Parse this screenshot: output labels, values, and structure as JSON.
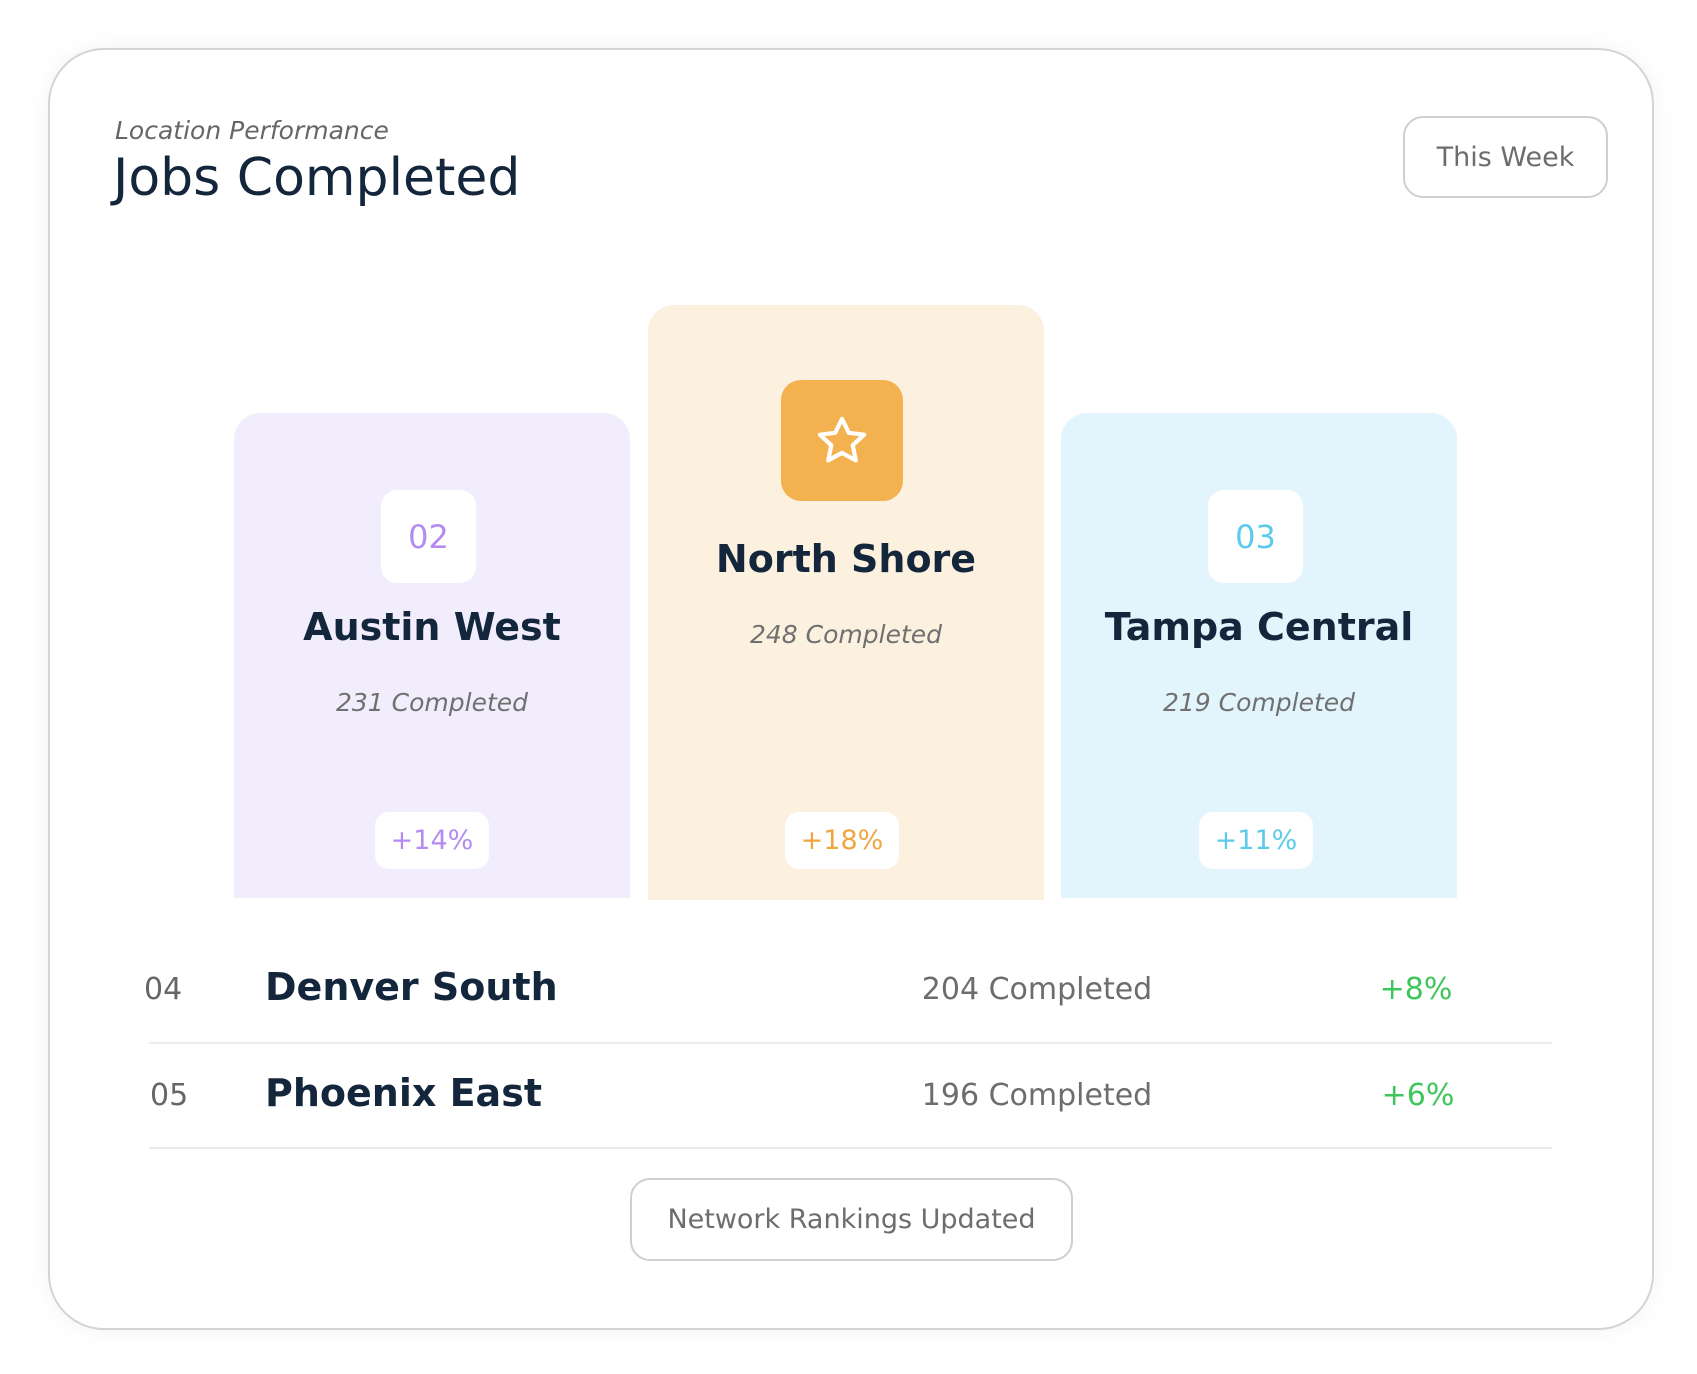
{
  "header": {
    "subtitle": "Location Performance",
    "title": "Jobs Completed",
    "period": "This Week"
  },
  "podium": [
    {
      "rank": "02",
      "name": "Austin West",
      "completed": "231 Completed",
      "change": "+14%"
    },
    {
      "name": "North Shore",
      "completed": "248 Completed",
      "change": "+18%"
    },
    {
      "rank": "03",
      "name": "Tampa Central",
      "completed": "219 Completed",
      "change": "+11%"
    }
  ],
  "list": [
    {
      "rank": "04",
      "name": "Denver South",
      "completed": "204 Completed",
      "change": "+8%"
    },
    {
      "rank": "05",
      "name": "Phoenix East",
      "completed": "196 Completed",
      "change": "+6%"
    }
  ],
  "footer": {
    "status": "Network Rankings Updated"
  }
}
